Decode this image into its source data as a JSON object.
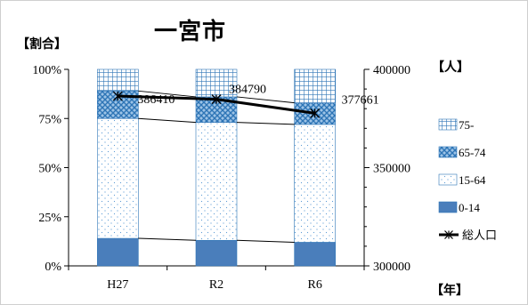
{
  "title": "一宮市",
  "left_axis_unit": "【割合】",
  "right_axis_unit": "【人】",
  "x_axis_unit": "【年】",
  "colors": {
    "s75plus": "#2E75B6",
    "s65_74": "#2E75B6",
    "s15_64": "#5B9BD5",
    "s0_14": "#4A7EBB",
    "total_line": "#000000"
  },
  "chart_data": {
    "type": "bar",
    "stacked": true,
    "categories": [
      "H27",
      "R2",
      "R6"
    ],
    "series": [
      {
        "name": "0-14",
        "values": [
          14,
          13,
          12
        ],
        "pattern": "solid"
      },
      {
        "name": "15-64",
        "values": [
          61,
          60,
          60
        ],
        "pattern": "dots"
      },
      {
        "name": "65-74",
        "values": [
          14,
          13,
          11
        ],
        "pattern": "crosshatch"
      },
      {
        "name": "75-",
        "values": [
          11,
          14,
          17
        ],
        "pattern": "grid"
      }
    ],
    "line_series": {
      "name": "総人口",
      "axis": "right",
      "values": [
        386410,
        384790,
        377661
      ],
      "data_labels": [
        "386410",
        "384790",
        "377661"
      ]
    },
    "left_axis": {
      "ticks": [
        "0%",
        "25%",
        "50%",
        "75%",
        "100%"
      ],
      "ylim": [
        0,
        100
      ]
    },
    "right_axis": {
      "ticks": [
        "300000",
        "350000",
        "400000"
      ],
      "ylim": [
        300000,
        400000
      ]
    },
    "legend_order": [
      "75-",
      "65-74",
      "15-64",
      "0-14",
      "総人口"
    ],
    "legend_position": "right",
    "grid": false
  }
}
